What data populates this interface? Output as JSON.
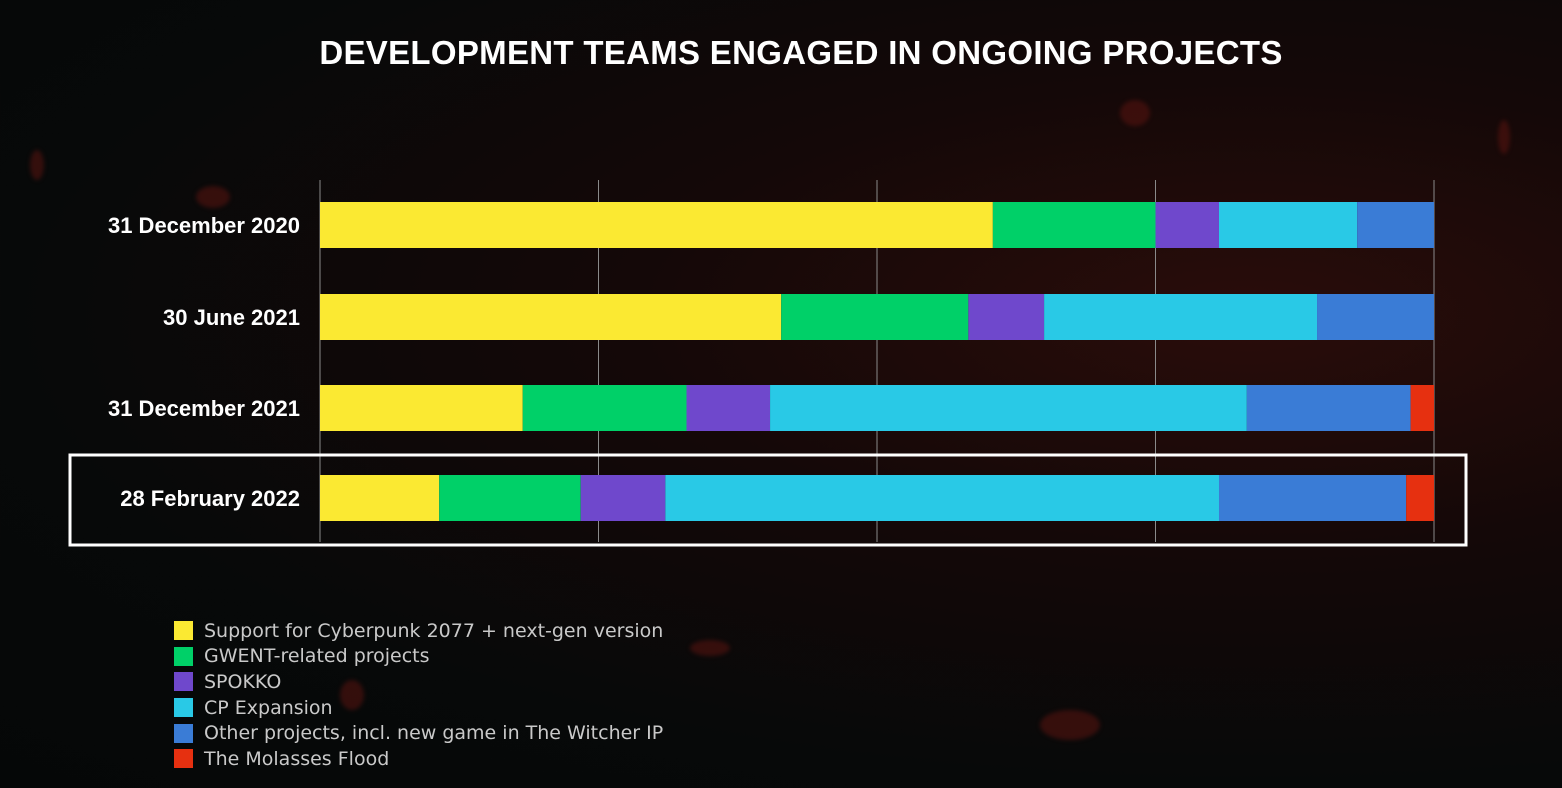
{
  "title": "DEVELOPMENT TEAMS ENGAGED IN ONGOING PROJECTS",
  "chart_data": {
    "type": "bar",
    "orientation": "horizontal",
    "stacked": true,
    "normalized": true,
    "title": "DEVELOPMENT TEAMS ENGAGED IN ONGOING PROJECTS",
    "xlim": [
      0,
      100
    ],
    "grid": true,
    "highlighted_category": "28 February 2022",
    "categories": [
      "31 December 2020",
      "30 June 2021",
      "31 December 2021",
      "28 February 2022"
    ],
    "series": [
      {
        "name": "Support for Cyberpunk 2077 + next-gen version",
        "color": "#fbe932",
        "values": [
          60.4,
          41.4,
          18.2,
          10.7
        ]
      },
      {
        "name": "GWENT-related projects",
        "color": "#00d068",
        "values": [
          14.6,
          16.8,
          14.7,
          12.7
        ]
      },
      {
        "name": "SPOKKO",
        "color": "#6f48cc",
        "values": [
          5.7,
          6.8,
          7.5,
          7.6
        ]
      },
      {
        "name": "CP Expansion",
        "color": "#29c9e6",
        "values": [
          12.4,
          24.5,
          42.8,
          49.7
        ]
      },
      {
        "name": "Other projects, incl. new game in The Witcher IP",
        "color": "#3a7cd6",
        "values": [
          6.9,
          10.5,
          14.7,
          16.8
        ]
      },
      {
        "name": "The Molasses Flood",
        "color": "#e63010",
        "values": [
          0,
          0,
          2.1,
          2.5
        ]
      }
    ]
  }
}
